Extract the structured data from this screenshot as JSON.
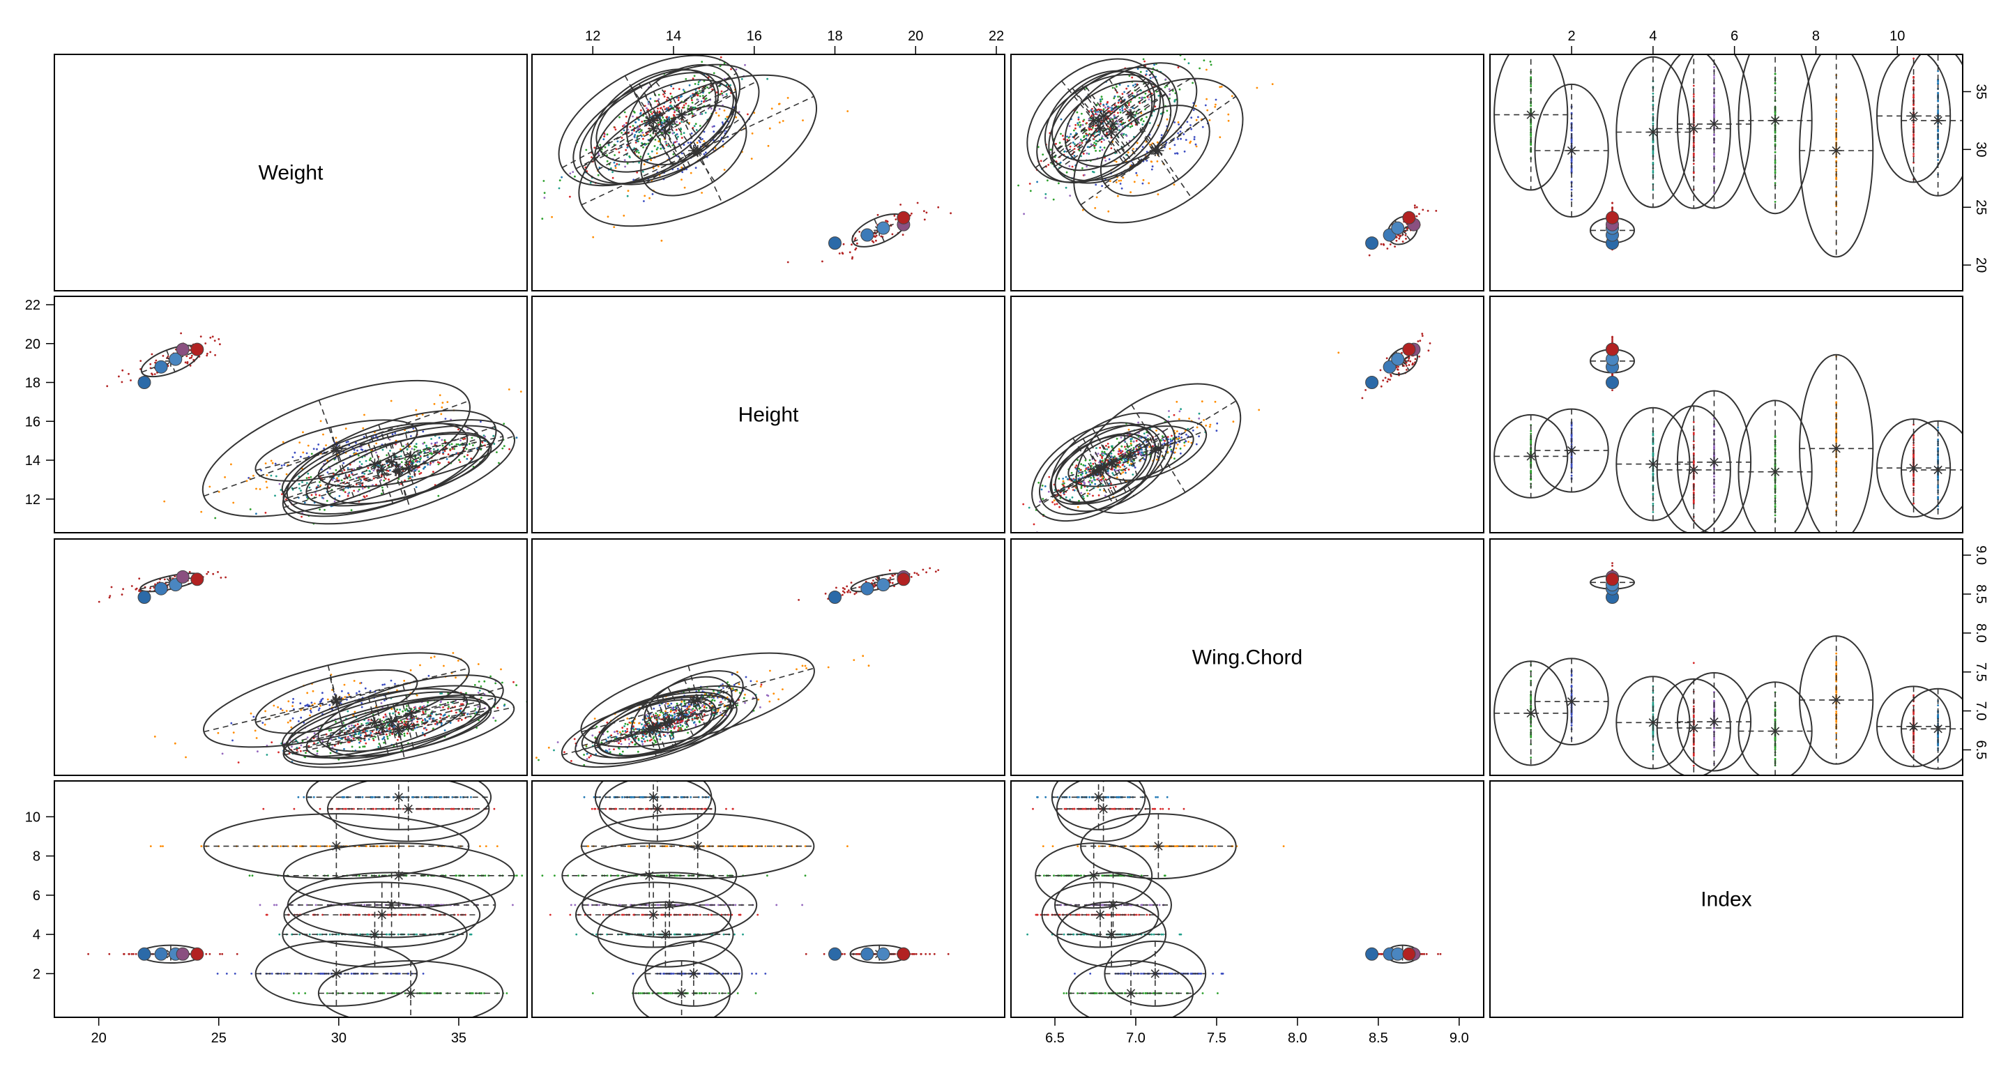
{
  "chart_data": {
    "type": "scatter",
    "title": "",
    "variables": [
      {
        "name": "Weight",
        "range": [
          18.5,
          37.5
        ],
        "ticks": [
          20,
          25,
          30,
          35
        ]
      },
      {
        "name": "Height",
        "range": [
          10.7,
          22.0
        ],
        "ticks": [
          12,
          14,
          16,
          18,
          20,
          22
        ]
      },
      {
        "name": "Wing.Chord",
        "range": [
          6.28,
          9.1
        ],
        "ticks": [
          6.5,
          7.0,
          7.5,
          8.0,
          8.5,
          9.0
        ]
      },
      {
        "name": "Index",
        "range": [
          0.2,
          11.4
        ],
        "ticks": [
          2,
          4,
          6,
          8,
          10
        ]
      }
    ],
    "tick_labels": {
      "Weight": [
        "20",
        "25",
        "30",
        "35"
      ],
      "Height": [
        "12",
        "14",
        "16",
        "18",
        "20",
        "22"
      ],
      "Wing.Chord": [
        "6.5",
        "7.0",
        "7.5",
        "8.0",
        "8.5",
        "9.0"
      ],
      "Index": [
        "2",
        "4",
        "6",
        "8",
        "10"
      ]
    },
    "axis_placement": {
      "top": [
        "Height",
        "Index"
      ],
      "bottom": [
        "Weight",
        "Wing.Chord"
      ],
      "left": [
        "Height",
        "Index"
      ],
      "right": [
        "Weight",
        "Wing.Chord"
      ]
    },
    "grid": false,
    "legend": "none",
    "groups": [
      {
        "index": 1,
        "color": "#2ca02c",
        "center": {
          "Weight": 33.0,
          "Height": 14.2,
          "Wing.Chord": 6.97
        },
        "sd": {
          "Weight": 1.6,
          "Height": 0.5,
          "Wing.Chord": 0.16
        }
      },
      {
        "index": 2,
        "color": "#3b4cc0",
        "center": {
          "Weight": 29.9,
          "Height": 14.5,
          "Wing.Chord": 7.12
        },
        "sd": {
          "Weight": 1.4,
          "Height": 0.5,
          "Wing.Chord": 0.13
        }
      },
      {
        "index": 3,
        "color": "#b22222",
        "center": {
          "Weight": 23.0,
          "Height": 19.1,
          "Wing.Chord": 8.65
        },
        "sd": {
          "Weight": 0.9,
          "Height": 0.5,
          "Wing.Chord": 0.07
        }
      },
      {
        "index": 4,
        "color": "#1f9e89",
        "center": {
          "Weight": 31.5,
          "Height": 13.8,
          "Wing.Chord": 6.85
        },
        "sd": {
          "Weight": 1.6,
          "Height": 0.7,
          "Wing.Chord": 0.14
        }
      },
      {
        "index": 5,
        "color": "#d62728",
        "center": {
          "Weight": 31.8,
          "Height": 13.5,
          "Wing.Chord": 6.78
        },
        "sd": {
          "Weight": 1.7,
          "Height": 0.8,
          "Wing.Chord": 0.15
        }
      },
      {
        "index": 5.5,
        "color": "#9467bd",
        "center": {
          "Weight": 32.2,
          "Height": 13.9,
          "Wing.Chord": 6.86
        },
        "sd": {
          "Weight": 1.8,
          "Height": 0.9,
          "Wing.Chord": 0.15
        }
      },
      {
        "index": 7,
        "color": "#2ca02c",
        "center": {
          "Weight": 32.5,
          "Height": 13.4,
          "Wing.Chord": 6.74
        },
        "sd": {
          "Weight": 2.0,
          "Height": 0.9,
          "Wing.Chord": 0.15
        }
      },
      {
        "index": 8.5,
        "color": "#ff8c00",
        "center": {
          "Weight": 29.9,
          "Height": 14.6,
          "Wing.Chord": 7.14
        },
        "sd": {
          "Weight": 2.3,
          "Height": 1.2,
          "Wing.Chord": 0.2
        }
      },
      {
        "index": 10.4,
        "color": "#d62728",
        "center": {
          "Weight": 32.9,
          "Height": 13.6,
          "Wing.Chord": 6.8
        },
        "sd": {
          "Weight": 1.4,
          "Height": 0.6,
          "Wing.Chord": 0.12
        }
      },
      {
        "index": 11.0,
        "color": "#1f77b4",
        "center": {
          "Weight": 32.5,
          "Height": 13.5,
          "Wing.Chord": 6.77
        },
        "sd": {
          "Weight": 1.6,
          "Height": 0.6,
          "Wing.Chord": 0.12
        }
      }
    ],
    "cluster_group": {
      "index": 3,
      "note": "",
      "points": [
        {
          "Weight": 21.9,
          "Height": 18.0,
          "Wing.Chord": 8.46,
          "color": "#2b6aa8"
        },
        {
          "Weight": 22.6,
          "Height": 18.8,
          "Wing.Chord": 8.57,
          "color": "#3c7ab8"
        },
        {
          "Weight": 23.2,
          "Height": 19.2,
          "Wing.Chord": 8.62,
          "color": "#4a86c0"
        },
        {
          "Weight": 23.5,
          "Height": 19.7,
          "Wing.Chord": 8.72,
          "color": "#8a5080"
        },
        {
          "Weight": 24.1,
          "Height": 19.7,
          "Wing.Chord": 8.69,
          "color": "#b22222"
        }
      ]
    }
  }
}
